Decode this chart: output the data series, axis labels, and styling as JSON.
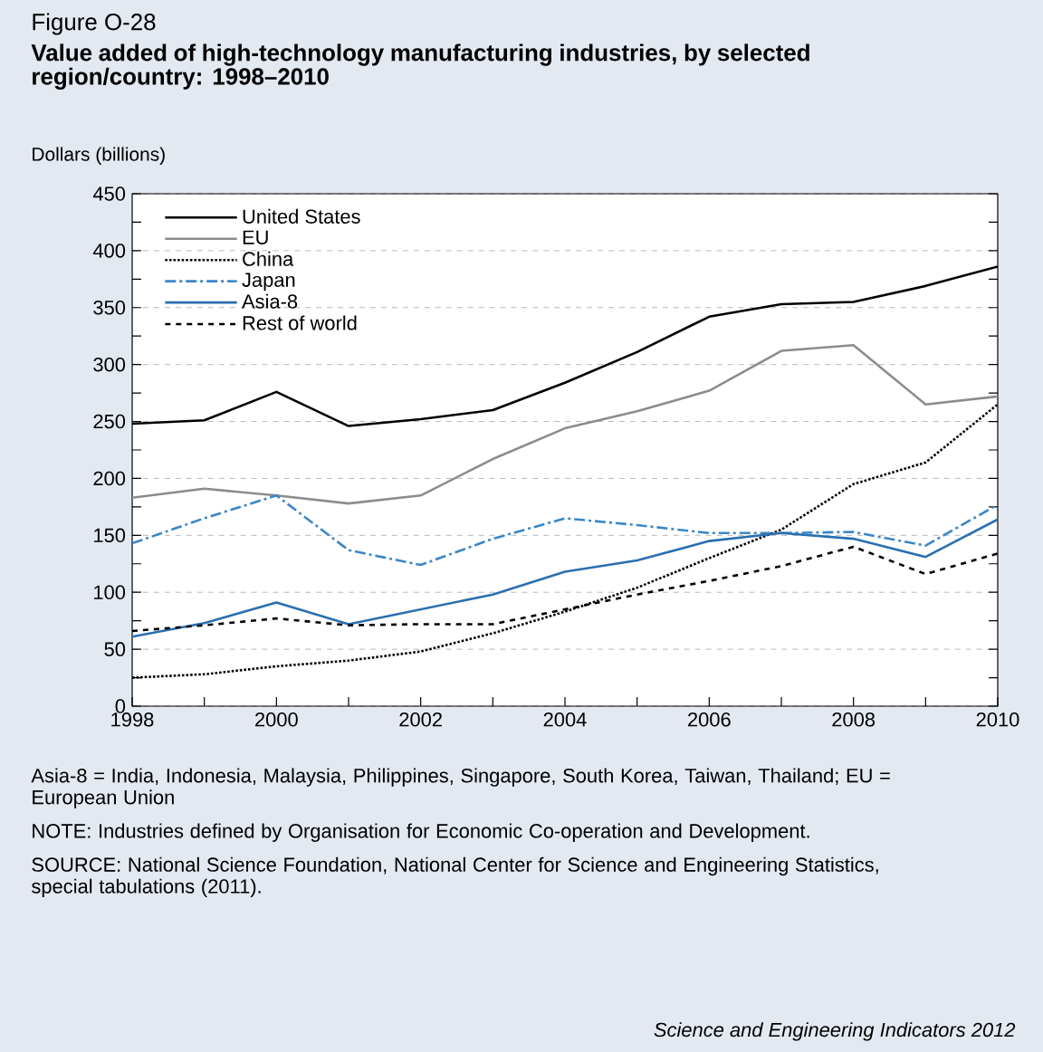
{
  "chart_data": {
    "type": "line",
    "title": "Figure O-28",
    "subtitle": "Value added of high-technology manufacturing industries, by selected region/country: 1998–2010",
    "ylabel": "Dollars (billions)",
    "x": [
      1998,
      1999,
      2000,
      2001,
      2002,
      2003,
      2004,
      2005,
      2006,
      2007,
      2008,
      2009,
      2010
    ],
    "series": [
      {
        "name": "United States",
        "color": "#000000",
        "line_style": "solid",
        "values": [
          248,
          251,
          276,
          246,
          252,
          260,
          284,
          311,
          342,
          353,
          355,
          369,
          386
        ]
      },
      {
        "name": "EU",
        "color": "#8c8c8c",
        "line_style": "solid",
        "values": [
          183,
          191,
          185,
          178,
          185,
          217,
          244,
          259,
          277,
          312,
          317,
          265,
          272
        ]
      },
      {
        "name": "China",
        "color": "#000000",
        "line_style": "dotted",
        "values": [
          25,
          28,
          35,
          40,
          48,
          64,
          83,
          104,
          130,
          155,
          195,
          214,
          265
        ]
      },
      {
        "name": "Japan",
        "color": "#3a86c8",
        "line_style": "dashdot",
        "values": [
          143,
          165,
          185,
          137,
          124,
          147,
          165,
          159,
          152,
          152,
          153,
          141,
          177
        ]
      },
      {
        "name": "Asia-8",
        "color": "#2a6fb0",
        "line_style": "solid",
        "values": [
          61,
          73,
          91,
          72,
          85,
          98,
          118,
          128,
          145,
          152,
          147,
          131,
          164
        ]
      },
      {
        "name": "Rest of world",
        "color": "#000000",
        "line_style": "dashed",
        "values": [
          66,
          71,
          77,
          71,
          72,
          72,
          85,
          98,
          110,
          123,
          140,
          116,
          134
        ]
      }
    ],
    "xlim": [
      1998,
      2010
    ],
    "xticks": [
      1998,
      {
        "value": 1999,
        "label": null
      },
      2000,
      {
        "value": 2001,
        "label": null
      },
      2002,
      {
        "value": 2003,
        "label": null
      },
      2004,
      {
        "value": 2005,
        "label": null
      },
      2006,
      {
        "value": 2007,
        "label": null
      },
      2008,
      {
        "value": 2009,
        "label": null
      },
      2010
    ],
    "ylim": [
      0,
      450
    ],
    "yticks": [
      0,
      {
        "value": 25,
        "label": null
      },
      50,
      {
        "value": 75,
        "label": null
      },
      100,
      {
        "value": 125,
        "label": null
      },
      150,
      {
        "value": 175,
        "label": null
      },
      200,
      {
        "value": 225,
        "label": null
      },
      250,
      {
        "value": 275,
        "label": null
      },
      300,
      {
        "value": 325,
        "label": null
      },
      350,
      {
        "value": 375,
        "label": null
      },
      400,
      {
        "value": 425,
        "label": null
      },
      450
    ],
    "grid": "y",
    "legend": "top left",
    "marker": "none",
    "annotations": [
      "Asia-8 = India, Indonesia, Malaysia, Philippines, Singapore, South Korea, Taiwan, Thailand; EU = European Union",
      "NOTE: Industries defined by Organisation for Economic Co-operation and Development.",
      "SOURCE: National Science Foundation, National Center for Science and Engineering Statistics, special tabulations (2011).",
      "Science and Engineering Indicators 2012"
    ]
  }
}
